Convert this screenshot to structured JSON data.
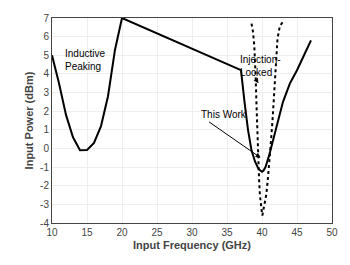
{
  "chart_data": {
    "type": "line",
    "xlabel": "Input Frequency (GHz)",
    "ylabel": "Input Power (dBm)",
    "xlim": [
      10,
      50
    ],
    "ylim": [
      -4,
      7
    ],
    "xticks": [
      10,
      15,
      20,
      25,
      30,
      35,
      40,
      45,
      50
    ],
    "yticks": [
      -4,
      -3,
      -2,
      -1,
      0,
      1,
      2,
      3,
      4,
      5,
      6,
      7
    ],
    "grid": true,
    "series": [
      {
        "color": "#000000",
        "line_style": "solid",
        "x": [
          10,
          11,
          12,
          13,
          14,
          15,
          16,
          17,
          18,
          19,
          20,
          37.0,
          37.5,
          38.0,
          38.5,
          39.0,
          39.5,
          39.8,
          40.0,
          40.2,
          40.5,
          41.0,
          41.5,
          42.0,
          43.0,
          44.0,
          45.0,
          46.0,
          47.0
        ],
        "values": [
          5.0,
          3.5,
          1.8,
          0.6,
          -0.1,
          -0.08,
          0.3,
          1.2,
          2.8,
          5.3,
          7.0,
          4.2,
          2.5,
          1.0,
          -0.1,
          -0.7,
          -1.1,
          -1.2,
          -1.25,
          -1.2,
          -1.0,
          -0.4,
          0.3,
          1.1,
          2.5,
          3.5,
          4.2,
          5.0,
          5.8
        ]
      },
      {
        "color": "#000000",
        "line_style": "dotted",
        "x": [
          38.5,
          38.7,
          38.9,
          39.0,
          39.1,
          39.2,
          39.3,
          39.4,
          39.5,
          39.6,
          39.7,
          39.8,
          39.9,
          40.0,
          40.05
        ],
        "values": [
          6.7,
          6.3,
          5.5,
          4.8,
          3.8,
          2.5,
          1.2,
          0.0,
          -1.0,
          -1.8,
          -2.5,
          -3.0,
          -3.3,
          -3.5,
          -3.6
        ]
      },
      {
        "color": "#000000",
        "line_style": "dotted",
        "x": [
          40.05,
          40.1,
          40.2,
          40.4,
          40.6,
          40.8,
          41.0,
          41.2,
          41.5,
          41.8,
          42.0,
          42.2,
          42.4,
          42.6,
          42.8,
          43.0
        ],
        "values": [
          -3.6,
          -3.5,
          -3.3,
          -3.0,
          -2.5,
          -1.8,
          -1.0,
          0.0,
          1.5,
          3.5,
          4.8,
          5.8,
          6.3,
          6.6,
          6.7,
          6.8
        ]
      }
    ],
    "annotations": [
      {
        "text": "Inductive\nPeaking",
        "x": 11.5,
        "y": 5.5
      },
      {
        "text": "Injection-\nLocked",
        "x": 36.5,
        "y": 5.2,
        "xy": [
          39.5,
          3.5
        ]
      },
      {
        "text": "This Work",
        "x": 31.0,
        "y": 1.8,
        "xy": [
          39.8,
          -0.5
        ]
      }
    ]
  }
}
